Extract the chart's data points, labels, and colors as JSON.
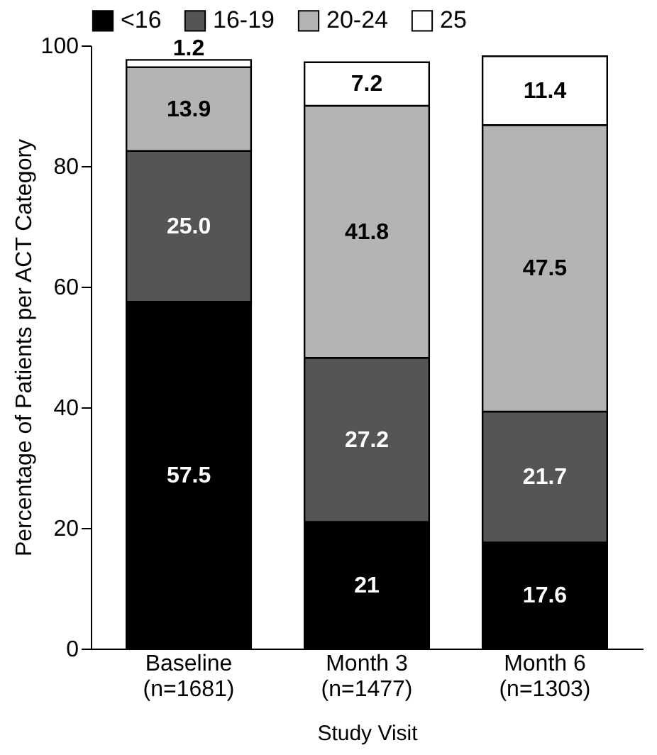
{
  "chart_data": {
    "type": "bar",
    "stacked": true,
    "xlabel": "Study Visit",
    "ylabel": "Percentage of Patients per ACT Category",
    "categories": [
      "Baseline\n(n=1681)",
      "Month 3\n(n=1477)",
      "Month 6\n(n=1303)"
    ],
    "series": [
      {
        "name": "<16",
        "color": "#000000",
        "values": [
          57.5,
          21,
          17.6
        ],
        "value_labels": [
          "57.5",
          "21",
          "17.6"
        ]
      },
      {
        "name": "16-19",
        "color": "#555555",
        "values": [
          25.0,
          27.2,
          21.7
        ],
        "value_labels": [
          "25.0",
          "27.2",
          "21.7"
        ]
      },
      {
        "name": "20-24",
        "color": "#b4b4b4",
        "values": [
          13.9,
          41.8,
          47.5
        ],
        "value_labels": [
          "13.9",
          "41.8",
          "47.5"
        ]
      },
      {
        "name": "25",
        "color": "#ffffff",
        "values": [
          1.2,
          7.2,
          11.4
        ],
        "value_labels": [
          "1.2",
          "7.2",
          "11.4"
        ]
      }
    ],
    "ylim": [
      0,
      100
    ],
    "yticks": [
      0,
      20,
      40,
      60,
      80,
      100
    ],
    "grid": false,
    "legend": "top"
  }
}
